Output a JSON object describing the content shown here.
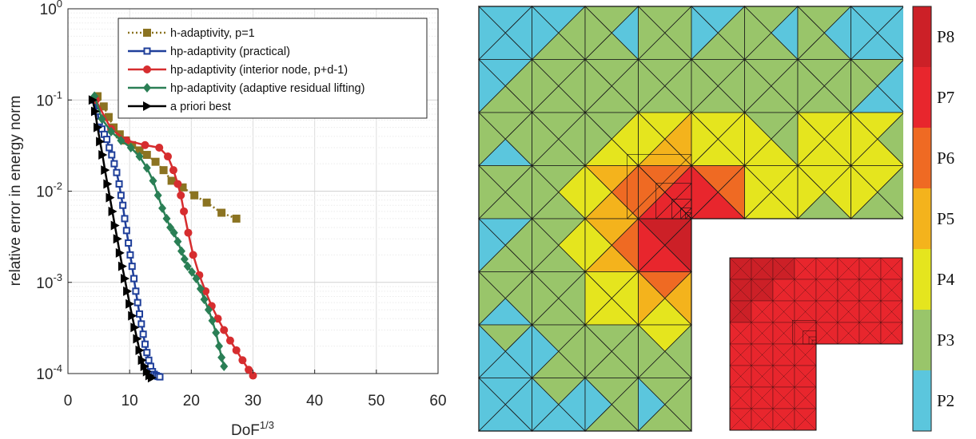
{
  "chart_data": [
    {
      "type": "line",
      "xlabel_base": "DoF",
      "xlabel_exp": "1/3",
      "ylabel": "relative error in energy norm",
      "xlim": [
        0,
        60
      ],
      "ylim_log10": [
        -4,
        0
      ],
      "xticks": [
        "0",
        "10",
        "20",
        "30",
        "40",
        "50",
        "60"
      ],
      "yticks": [
        {
          "base": "10",
          "exp": "0"
        },
        {
          "base": "10",
          "exp": "-1"
        },
        {
          "base": "10",
          "exp": "-2"
        },
        {
          "base": "10",
          "exp": "-3"
        },
        {
          "base": "10",
          "exp": "-4"
        }
      ],
      "yscale": "log",
      "grid": true,
      "legend_position": "top-right",
      "series": [
        {
          "name": "h-adaptivity, p=1",
          "color": "#8b7321",
          "marker": "square",
          "dash": "dotted",
          "x": [
            4.8,
            5.8,
            6.6,
            7.4,
            8.4,
            9.4,
            10.4,
            11.6,
            12.8,
            14.2,
            15.5,
            16.8,
            18.6,
            20.5,
            22.5,
            24.9,
            27.3
          ],
          "y": [
            0.11,
            0.085,
            0.065,
            0.05,
            0.042,
            0.036,
            0.032,
            0.028,
            0.025,
            0.021,
            0.017,
            0.013,
            0.011,
            0.009,
            0.0075,
            0.0058,
            0.005
          ]
        },
        {
          "name": "hp-adaptivity (practical)",
          "color": "#1f3f9a",
          "marker": "hollow-square",
          "dash": "solid",
          "x": [
            4.3,
            4.7,
            5.1,
            5.5,
            5.9,
            6.3,
            6.7,
            7.1,
            7.5,
            7.9,
            8.3,
            8.6,
            8.9,
            9.2,
            9.5,
            9.8,
            10.1,
            10.4,
            10.7,
            11.0,
            11.3,
            11.6,
            11.9,
            12.2,
            12.5,
            12.8,
            13.1,
            13.4,
            13.7,
            14.0,
            14.3,
            14.6,
            14.9
          ],
          "y": [
            0.1,
            0.075,
            0.058,
            0.048,
            0.042,
            0.037,
            0.03,
            0.025,
            0.02,
            0.016,
            0.012,
            0.009,
            0.007,
            0.005,
            0.0037,
            0.0027,
            0.002,
            0.0015,
            0.0011,
            0.0008,
            0.0006,
            0.00045,
            0.00035,
            0.00027,
            0.00021,
            0.00017,
            0.00014,
            0.00012,
            0.000105,
            9.8e-05,
            9.5e-05,
            9.3e-05,
            9.2e-05
          ]
        },
        {
          "name": "hp-adaptivity (interior node, p+d-1)",
          "color": "#d62d2f",
          "marker": "circle",
          "dash": "solid",
          "x": [
            4.5,
            7.0,
            9.5,
            12.5,
            14.8,
            16.2,
            17.1,
            17.8,
            18.3,
            18.8,
            19.5,
            20.3,
            21.3,
            22.3,
            23.3,
            24.3,
            25.3,
            26.3,
            27.3,
            28.3,
            29.3,
            30.0
          ],
          "y": [
            0.1,
            0.048,
            0.036,
            0.032,
            0.03,
            0.024,
            0.017,
            0.012,
            0.009,
            0.006,
            0.0035,
            0.002,
            0.0012,
            0.0008,
            0.00055,
            0.0004,
            0.0003,
            0.00023,
            0.00018,
            0.00014,
            0.00011,
            9.5e-05
          ]
        },
        {
          "name": "hp-adaptivity (adaptive residual lifting)",
          "color": "#2a7f55",
          "marker": "diamond",
          "dash": "solid",
          "x": [
            4.3,
            5.5,
            7.0,
            8.6,
            10.2,
            11.6,
            12.8,
            13.8,
            14.6,
            15.3,
            16.0,
            16.6,
            17.2,
            17.8,
            18.4,
            18.9,
            19.4,
            20.1,
            20.8,
            21.5,
            22.1,
            22.8,
            23.4,
            24.0,
            24.5,
            24.9,
            25.3
          ],
          "y": [
            0.11,
            0.062,
            0.045,
            0.036,
            0.03,
            0.024,
            0.018,
            0.013,
            0.009,
            0.0065,
            0.005,
            0.004,
            0.0035,
            0.0028,
            0.0022,
            0.0018,
            0.0015,
            0.0013,
            0.0011,
            0.00085,
            0.00065,
            0.0005,
            0.00038,
            0.00028,
            0.0002,
            0.00015,
            0.00012
          ]
        },
        {
          "name": "a priori best",
          "color": "#000000",
          "marker": "triangle-right",
          "dash": "solid",
          "x": [
            4.0,
            4.4,
            4.8,
            5.2,
            5.6,
            6.0,
            6.4,
            6.8,
            7.2,
            7.6,
            8.0,
            8.4,
            8.8,
            9.2,
            9.6,
            10.0,
            10.4,
            10.8,
            11.2,
            11.6,
            12.0,
            12.4,
            12.8,
            13.2,
            13.6
          ],
          "y": [
            0.1,
            0.075,
            0.05,
            0.035,
            0.025,
            0.017,
            0.012,
            0.0085,
            0.006,
            0.0042,
            0.003,
            0.0021,
            0.0015,
            0.0011,
            0.0008,
            0.00058,
            0.00043,
            0.00032,
            0.00024,
            0.00018,
            0.00014,
            0.00012,
            0.000105,
            9.5e-05,
            9e-05
          ]
        }
      ]
    },
    {
      "type": "heatmap",
      "colorbar": {
        "labels": [
          "P2",
          "P3",
          "P4",
          "P5",
          "P6",
          "P7",
          "P8"
        ],
        "colors": [
          "#5bc6dd",
          "#99c56a",
          "#e5e51e",
          "#f4b31c",
          "#ef6a23",
          "#e8262d",
          "#cc2027"
        ]
      }
    }
  ]
}
